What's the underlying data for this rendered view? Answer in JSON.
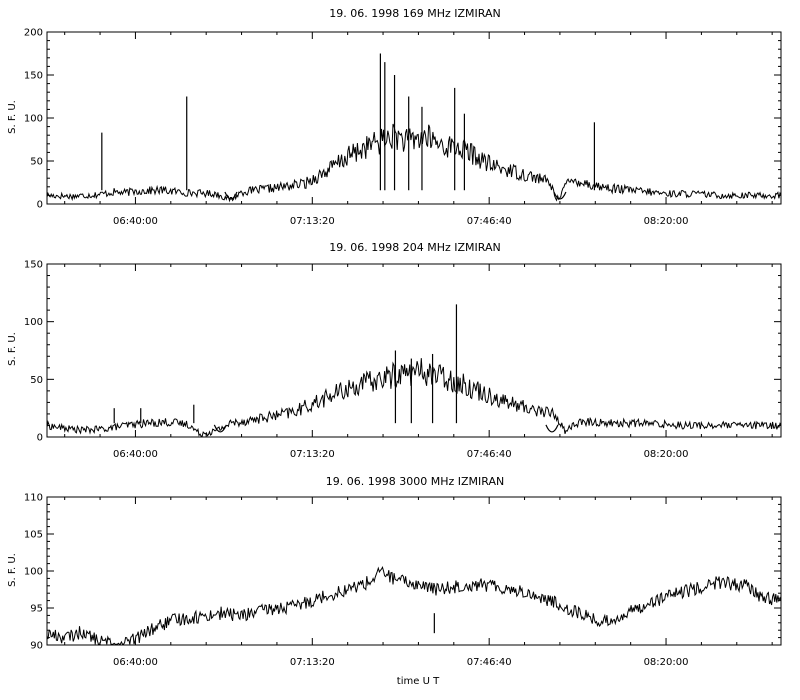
{
  "chart_data": [
    {
      "type": "line",
      "title": "19. 06. 1998    169 MHz    IZMIRAN",
      "ylabel": "S. F. U.",
      "xlabel": "",
      "x_range": [
        "06:23:20",
        "08:41:40"
      ],
      "x_tick_labels": [
        "06:40:00",
        "07:13:20",
        "07:46:40",
        "08:20:00"
      ],
      "ylim": [
        0,
        200
      ],
      "y_ticks": [
        0,
        50,
        100,
        150,
        200
      ],
      "series": [
        {
          "x": [
            "06:23:20",
            "06:28:00",
            "06:33:00",
            "06:36:00",
            "06:38:00",
            "06:40:00",
            "06:45:00",
            "06:50:00",
            "06:55:00",
            "06:58:00",
            "07:00:00",
            "07:04:00",
            "07:08:00",
            "07:12:00",
            "07:16:00",
            "07:20:00",
            "07:24:00",
            "07:27:00",
            "07:29:00",
            "07:31:00",
            "07:33:00",
            "07:35:00",
            "07:37:00",
            "07:39:00",
            "07:41:00",
            "07:43:00",
            "07:45:00",
            "07:47:00",
            "07:50:00",
            "07:53:00",
            "07:56:00",
            "07:58:00",
            "07:59:30",
            "08:01:00",
            "08:03:00",
            "08:06:00",
            "08:10:00",
            "08:15:00",
            "08:20:00",
            "08:25:00",
            "08:30:00",
            "08:35:00",
            "08:41:40"
          ],
          "values": [
            10,
            9,
            11,
            14,
            13,
            15,
            16,
            13,
            12,
            5,
            14,
            17,
            20,
            24,
            38,
            55,
            68,
            75,
            80,
            72,
            76,
            78,
            70,
            67,
            65,
            60,
            52,
            45,
            40,
            35,
            30,
            25,
            5,
            22,
            28,
            22,
            18,
            15,
            12,
            12,
            10,
            10,
            10
          ]
        }
      ],
      "spikes": [
        {
          "x": "06:33:40",
          "value": 83
        },
        {
          "x": "06:49:40",
          "value": 125
        },
        {
          "x": "07:26:10",
          "value": 175
        },
        {
          "x": "07:27:00",
          "value": 165
        },
        {
          "x": "07:28:50",
          "value": 150
        },
        {
          "x": "07:31:30",
          "value": 125
        },
        {
          "x": "07:34:00",
          "value": 113
        },
        {
          "x": "07:40:10",
          "value": 135
        },
        {
          "x": "07:42:00",
          "value": 105
        },
        {
          "x": "08:06:30",
          "value": 95
        }
      ],
      "dips": [
        {
          "x": "06:58:00",
          "value": 0
        },
        {
          "x": "08:00:00",
          "value": 0
        }
      ]
    },
    {
      "type": "line",
      "title": "19. 06. 1998    204 MHz    IZMIRAN",
      "ylabel": "S. F. U.",
      "xlabel": "",
      "x_range": [
        "06:23:20",
        "08:41:40"
      ],
      "x_tick_labels": [
        "06:40:00",
        "07:13:20",
        "07:46:40",
        "08:20:00"
      ],
      "ylim": [
        0,
        150
      ],
      "y_ticks": [
        0,
        50,
        100,
        150
      ],
      "series": [
        {
          "x": [
            "06:23:20",
            "06:26:00",
            "06:30:00",
            "06:34:00",
            "06:38:00",
            "06:42:00",
            "06:46:00",
            "06:50:00",
            "06:52:00",
            "06:55:00",
            "06:58:00",
            "07:02:00",
            "07:06:00",
            "07:10:00",
            "07:14:00",
            "07:18:00",
            "07:22:00",
            "07:26:00",
            "07:30:00",
            "07:34:00",
            "07:38:00",
            "07:42:00",
            "07:46:00",
            "07:50:00",
            "07:54:00",
            "07:57:00",
            "07:59:00",
            "08:01:00",
            "08:03:00",
            "08:06:00",
            "08:10:00",
            "08:15:00",
            "08:20:00",
            "08:25:00",
            "08:30:00",
            "08:35:00",
            "08:41:40"
          ],
          "values": [
            10,
            8,
            6,
            7,
            10,
            12,
            13,
            11,
            3,
            5,
            12,
            15,
            18,
            22,
            30,
            38,
            45,
            50,
            55,
            57,
            52,
            45,
            38,
            30,
            25,
            22,
            20,
            5,
            12,
            13,
            12,
            12,
            11,
            10,
            10,
            10,
            10
          ]
        }
      ],
      "spikes": [
        {
          "x": "06:36:00",
          "value": 25
        },
        {
          "x": "06:41:00",
          "value": 25
        },
        {
          "x": "06:51:00",
          "value": 28
        },
        {
          "x": "07:29:00",
          "value": 75
        },
        {
          "x": "07:32:00",
          "value": 68
        },
        {
          "x": "07:36:00",
          "value": 72
        },
        {
          "x": "07:40:30",
          "value": 115
        }
      ],
      "dips": [
        {
          "x": "06:56:00",
          "value": 0
        },
        {
          "x": "07:58:30",
          "value": 0
        }
      ]
    },
    {
      "type": "line",
      "title": "19. 06. 1998    3000 MHz    IZMIRAN",
      "ylabel": "S. F. U.",
      "xlabel": "time  U T",
      "x_range": [
        "06:23:20",
        "08:41:40"
      ],
      "x_tick_labels": [
        "06:40:00",
        "07:13:20",
        "07:46:40",
        "08:20:00"
      ],
      "ylim": [
        90,
        110
      ],
      "y_ticks": [
        90,
        95,
        100,
        105,
        110
      ],
      "series": [
        {
          "x": [
            "06:23:20",
            "06:27:00",
            "06:30:00",
            "06:33:00",
            "06:37:00",
            "06:40:00",
            "06:44:00",
            "06:48:00",
            "06:52:00",
            "06:56:00",
            "07:00:00",
            "07:05:00",
            "07:10:00",
            "07:15:00",
            "07:20:00",
            "07:24:00",
            "07:26:30",
            "07:29:00",
            "07:33:00",
            "07:37:00",
            "07:41:00",
            "07:45:00",
            "07:49:00",
            "07:53:00",
            "07:58:00",
            "08:03:00",
            "08:08:00",
            "08:12:00",
            "08:16:00",
            "08:20:00",
            "08:25:00",
            "08:30:00",
            "08:35:00",
            "08:38:00",
            "08:41:40"
          ],
          "values": [
            91.5,
            91,
            91.8,
            90.5,
            90,
            90.8,
            92.5,
            93.5,
            93.8,
            94.3,
            94,
            94.8,
            95.2,
            96.5,
            97.5,
            98.5,
            100,
            98.8,
            98.2,
            97.5,
            98,
            98.2,
            97.8,
            97.2,
            96,
            94.5,
            93,
            94,
            95.5,
            96.5,
            97.5,
            98.5,
            98,
            96.5,
            96
          ]
        }
      ],
      "spikes": [
        {
          "x": "07:36:20",
          "value": 94.3
        }
      ],
      "dips": []
    }
  ]
}
